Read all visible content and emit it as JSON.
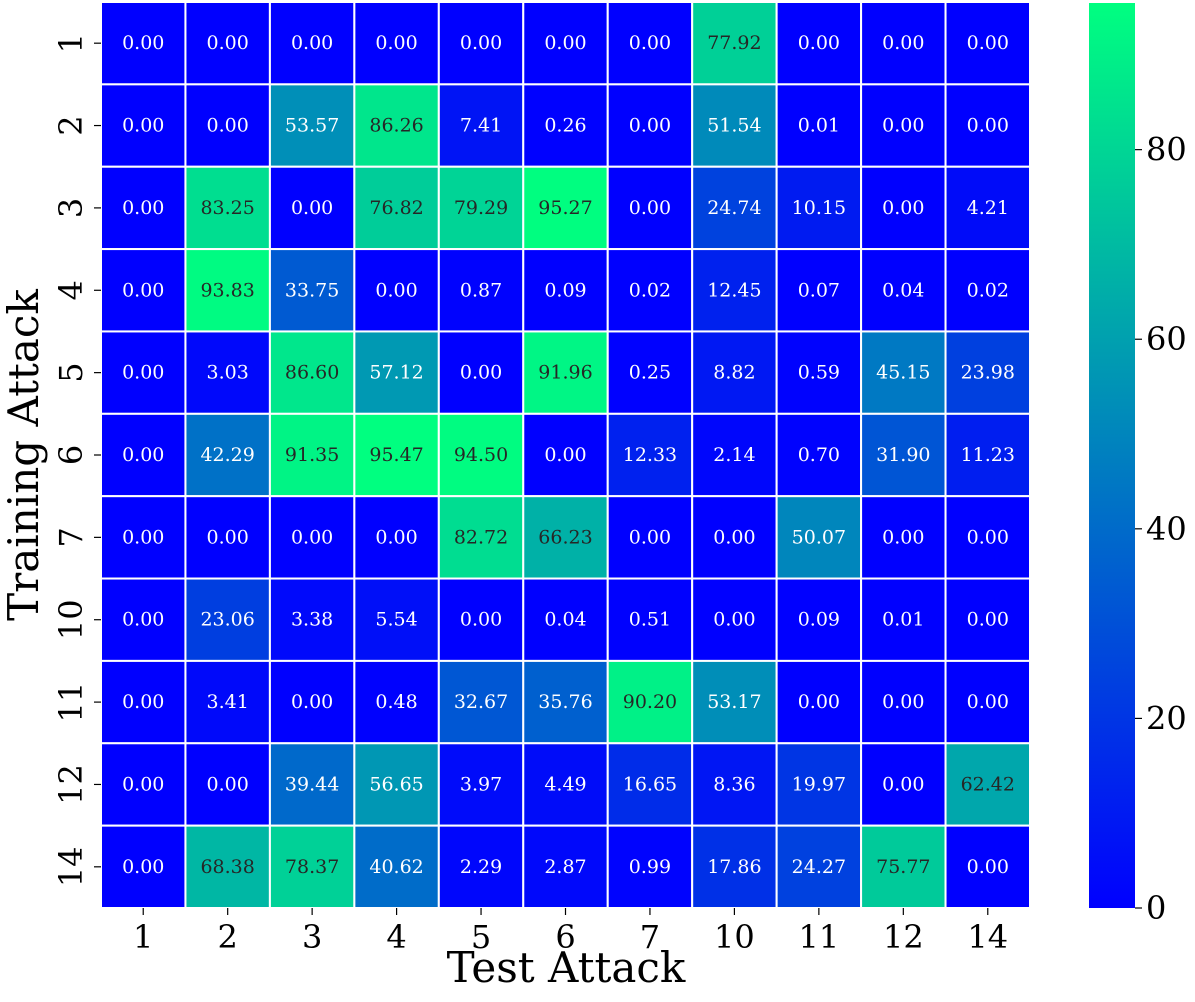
{
  "chart_data": {
    "type": "heatmap",
    "title": "",
    "xlabel": "Test Attack",
    "ylabel": "Training Attack",
    "x_categories": [
      "1",
      "2",
      "3",
      "4",
      "5",
      "6",
      "7",
      "10",
      "11",
      "12",
      "14"
    ],
    "y_categories": [
      "1",
      "2",
      "3",
      "4",
      "5",
      "6",
      "7",
      "10",
      "11",
      "12",
      "14"
    ],
    "values": [
      [
        0.0,
        0.0,
        0.0,
        0.0,
        0.0,
        0.0,
        0.0,
        77.92,
        0.0,
        0.0,
        0.0
      ],
      [
        0.0,
        0.0,
        53.57,
        86.26,
        7.41,
        0.26,
        0.0,
        51.54,
        0.01,
        0.0,
        0.0
      ],
      [
        0.0,
        83.25,
        0.0,
        76.82,
        79.29,
        95.27,
        0.0,
        24.74,
        10.15,
        0.0,
        4.21
      ],
      [
        0.0,
        93.83,
        33.75,
        0.0,
        0.87,
        0.09,
        0.02,
        12.45,
        0.07,
        0.04,
        0.02
      ],
      [
        0.0,
        3.03,
        86.6,
        57.12,
        0.0,
        91.96,
        0.25,
        8.82,
        0.59,
        45.15,
        23.98
      ],
      [
        0.0,
        42.29,
        91.35,
        95.47,
        94.5,
        0.0,
        12.33,
        2.14,
        0.7,
        31.9,
        11.23
      ],
      [
        0.0,
        0.0,
        0.0,
        0.0,
        82.72,
        66.23,
        0.0,
        0.0,
        50.07,
        0.0,
        0.0
      ],
      [
        0.0,
        23.06,
        3.38,
        5.54,
        0.0,
        0.04,
        0.51,
        0.0,
        0.09,
        0.01,
        0.0
      ],
      [
        0.0,
        3.41,
        0.0,
        0.48,
        32.67,
        35.76,
        90.2,
        53.17,
        0.0,
        0.0,
        0.0
      ],
      [
        0.0,
        0.0,
        39.44,
        56.65,
        3.97,
        4.49,
        16.65,
        8.36,
        19.97,
        0.0,
        62.42
      ],
      [
        0.0,
        68.38,
        78.37,
        40.62,
        2.29,
        2.87,
        0.99,
        17.86,
        24.27,
        75.77,
        0.0
      ]
    ],
    "value_format_decimals": 2,
    "colormap": {
      "name": "winter",
      "low_color": "#0000ff",
      "high_color": "#00ff80",
      "vmin": 0,
      "vmax": 95.47
    },
    "colorbar": {
      "ticks": [
        0,
        20,
        40,
        60,
        80
      ],
      "tick_labels": [
        "0",
        "20",
        "40",
        "60",
        "80"
      ]
    },
    "grid_line_color": "#ffffff",
    "annotation_dark_text_color": "#262626",
    "annotation_light_text_color": "#ffffff"
  }
}
